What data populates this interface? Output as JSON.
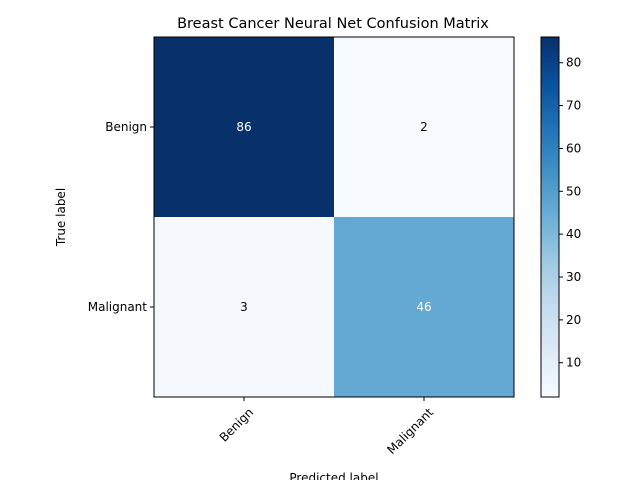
{
  "chart_data": {
    "type": "heatmap",
    "title": "Breast Cancer Neural Net Confusion Matrix",
    "xlabel": "Predicted label",
    "ylabel": "True label",
    "x_categories": [
      "Benign",
      "Malignant"
    ],
    "y_categories": [
      "Benign",
      "Malignant"
    ],
    "values": [
      [
        86,
        2
      ],
      [
        3,
        46
      ]
    ],
    "colormap": "Blues",
    "color_range": [
      2,
      86
    ],
    "colorbar_ticks": [
      10,
      20,
      30,
      40,
      50,
      60,
      70,
      80
    ],
    "colorbar_tick_labels": [
      "10",
      "20",
      "30",
      "40",
      "50",
      "60",
      "70",
      "80"
    ],
    "text_color_dark": "#000000",
    "text_color_light": "#ffffff",
    "grid": false
  }
}
